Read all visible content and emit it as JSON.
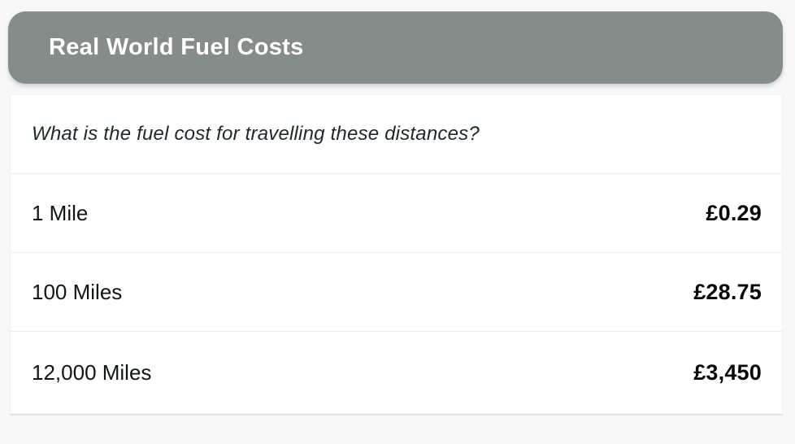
{
  "header": {
    "title": "Real World Fuel Costs"
  },
  "card": {
    "question": "What is the fuel cost for travelling these distances?",
    "rows": [
      {
        "label": "1 Mile",
        "value": "£0.29"
      },
      {
        "label": "100 Miles",
        "value": "£28.75"
      },
      {
        "label": "12,000 Miles",
        "value": "£3,450"
      }
    ]
  },
  "colors": {
    "header_bg": "#848c8c",
    "header_text": "#ffffff",
    "page_bg": "#f7f7f8",
    "separator": "#ececf3"
  }
}
